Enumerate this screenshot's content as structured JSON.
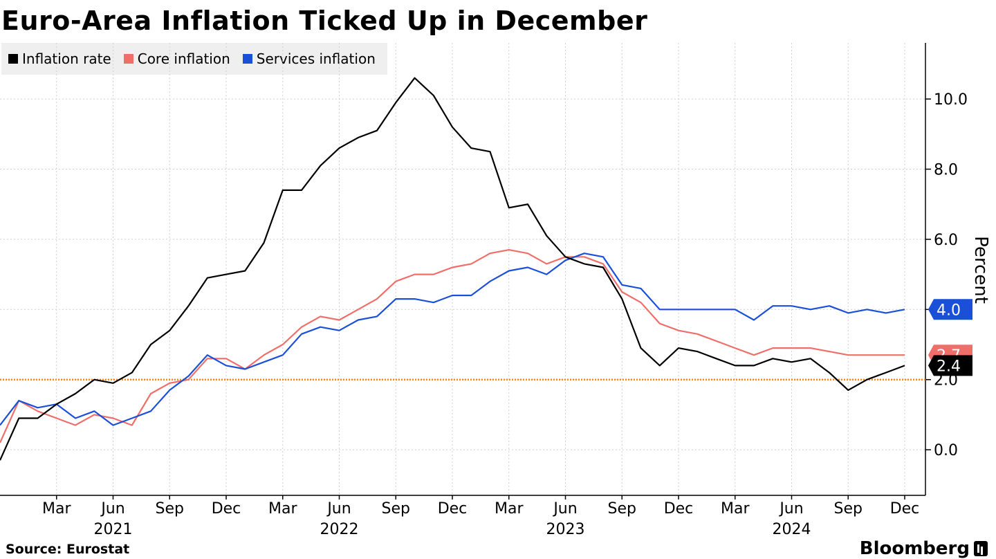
{
  "title": "Euro-Area Inflation Ticked Up in December",
  "source": "Source: Eurostat",
  "brand": "Bloomberg",
  "colors": {
    "inflation": "#000000",
    "core": "#f06e6a",
    "services": "#1a4fd8",
    "target": "#f28a1e",
    "grid": "#cfcfcf"
  },
  "chart_data": {
    "type": "line",
    "title": "Euro-Area Inflation Ticked Up in December",
    "ylabel": "Percent",
    "ylim": [
      -1.3,
      11.6
    ],
    "yticks": [
      0.0,
      2.0,
      4.0,
      6.0,
      8.0,
      10.0
    ],
    "ytick_labels": [
      "0.0",
      "2.0",
      "4.0",
      "6.0",
      "8.0",
      "10.0"
    ],
    "x_start": "2020-12",
    "x_months": [
      "2020-12",
      "2021-01",
      "2021-02",
      "2021-03",
      "2021-04",
      "2021-05",
      "2021-06",
      "2021-07",
      "2021-08",
      "2021-09",
      "2021-10",
      "2021-11",
      "2021-12",
      "2022-01",
      "2022-02",
      "2022-03",
      "2022-04",
      "2022-05",
      "2022-06",
      "2022-07",
      "2022-08",
      "2022-09",
      "2022-10",
      "2022-11",
      "2022-12",
      "2023-01",
      "2023-02",
      "2023-03",
      "2023-04",
      "2023-05",
      "2023-06",
      "2023-07",
      "2023-08",
      "2023-09",
      "2023-10",
      "2023-11",
      "2023-12",
      "2024-01",
      "2024-02",
      "2024-03",
      "2024-04",
      "2024-05",
      "2024-06",
      "2024-07",
      "2024-08",
      "2024-09",
      "2024-10",
      "2024-11",
      "2024-12"
    ],
    "x_tick_labels": [
      {
        "month": "2021-03",
        "label": "Mar"
      },
      {
        "month": "2021-06",
        "label": "Jun"
      },
      {
        "month": "2021-09",
        "label": "Sep"
      },
      {
        "month": "2021-12",
        "label": "Dec"
      },
      {
        "month": "2022-03",
        "label": "Mar"
      },
      {
        "month": "2022-06",
        "label": "Jun"
      },
      {
        "month": "2022-09",
        "label": "Sep"
      },
      {
        "month": "2022-12",
        "label": "Dec"
      },
      {
        "month": "2023-03",
        "label": "Mar"
      },
      {
        "month": "2023-06",
        "label": "Jun"
      },
      {
        "month": "2023-09",
        "label": "Sep"
      },
      {
        "month": "2023-12",
        "label": "Dec"
      },
      {
        "month": "2024-03",
        "label": "Mar"
      },
      {
        "month": "2024-06",
        "label": "Jun"
      },
      {
        "month": "2024-09",
        "label": "Sep"
      },
      {
        "month": "2024-12",
        "label": "Dec"
      }
    ],
    "year_labels": [
      {
        "month": "2021-06",
        "label": "2021"
      },
      {
        "month": "2022-06",
        "label": "2022"
      },
      {
        "month": "2023-06",
        "label": "2023"
      },
      {
        "month": "2024-06",
        "label": "2024"
      }
    ],
    "series": [
      {
        "name": "Inflation rate",
        "color": "#000000",
        "values": [
          -0.3,
          0.9,
          0.9,
          1.3,
          1.6,
          2.0,
          1.9,
          2.2,
          3.0,
          3.4,
          4.1,
          4.9,
          5.0,
          5.1,
          5.9,
          7.4,
          7.4,
          8.1,
          8.6,
          8.9,
          9.1,
          9.9,
          10.6,
          10.1,
          9.2,
          8.6,
          8.5,
          6.9,
          7.0,
          6.1,
          5.5,
          5.3,
          5.2,
          4.3,
          2.9,
          2.4,
          2.9,
          2.8,
          2.6,
          2.4,
          2.4,
          2.6,
          2.5,
          2.6,
          2.2,
          1.7,
          2.0,
          2.2,
          2.4
        ],
        "end_label": "2.4"
      },
      {
        "name": "Core inflation",
        "color": "#f06e6a",
        "values": [
          0.2,
          1.4,
          1.1,
          0.9,
          0.7,
          1.0,
          0.9,
          0.7,
          1.6,
          1.9,
          2.0,
          2.6,
          2.6,
          2.3,
          2.7,
          3.0,
          3.5,
          3.8,
          3.7,
          4.0,
          4.3,
          4.8,
          5.0,
          5.0,
          5.2,
          5.3,
          5.6,
          5.7,
          5.6,
          5.3,
          5.5,
          5.5,
          5.3,
          4.5,
          4.2,
          3.6,
          3.4,
          3.3,
          3.1,
          2.9,
          2.7,
          2.9,
          2.9,
          2.9,
          2.8,
          2.7,
          2.7,
          2.7,
          2.7
        ],
        "end_label": "2.7"
      },
      {
        "name": "Services inflation",
        "color": "#1a4fd8",
        "values": [
          0.7,
          1.4,
          1.2,
          1.3,
          0.9,
          1.1,
          0.7,
          0.9,
          1.1,
          1.7,
          2.1,
          2.7,
          2.4,
          2.3,
          2.5,
          2.7,
          3.3,
          3.5,
          3.4,
          3.7,
          3.8,
          4.3,
          4.3,
          4.2,
          4.4,
          4.4,
          4.8,
          5.1,
          5.2,
          5.0,
          5.4,
          5.6,
          5.5,
          4.7,
          4.6,
          4.0,
          4.0,
          4.0,
          4.0,
          4.0,
          3.7,
          4.1,
          4.1,
          4.0,
          4.1,
          3.9,
          4.0,
          3.9,
          4.0
        ],
        "end_label": "4.0"
      }
    ],
    "reference_line": {
      "value": 2.0,
      "color": "#f28a1e",
      "style": "dotted"
    },
    "grid": true,
    "legend_position": "top-left"
  }
}
